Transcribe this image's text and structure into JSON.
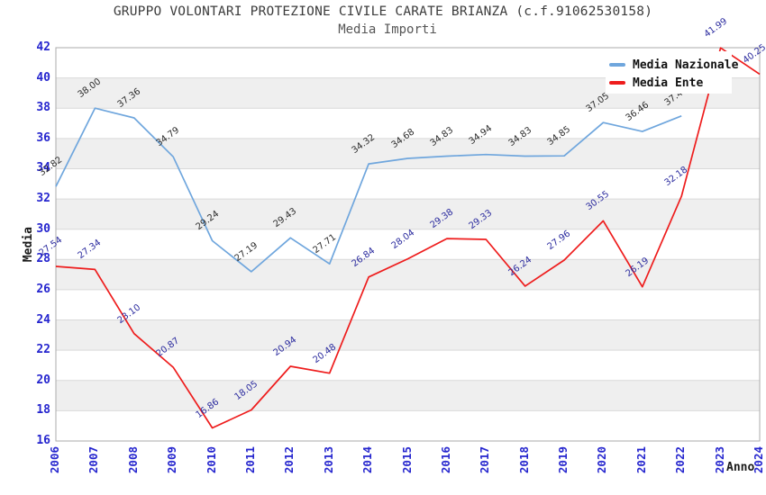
{
  "header": {
    "title": "GRUPPO VOLONTARI PROTEZIONE CIVILE CARATE BRIANZA (c.f.91062530158)",
    "subtitle": "Media Importi"
  },
  "colors": {
    "band_gray": "#efefef",
    "grid_line": "#d9d9d9",
    "plot_border": "#ababab",
    "tick_label": "#2525ce",
    "axis_title": "#1a1a1a"
  },
  "chart_data": {
    "type": "line",
    "title": "GRUPPO VOLONTARI PROTEZIONE CIVILE CARATE BRIANZA (c.f.91062530158)",
    "subtitle": "Media Importi",
    "xlabel": "Anno",
    "ylabel": "Media",
    "ylim": [
      16,
      42
    ],
    "ytick_step": 2,
    "ytick_labels": [
      "16",
      "18",
      "20",
      "22",
      "24",
      "26",
      "28",
      "30",
      "32",
      "34",
      "36",
      "38",
      "40",
      "42"
    ],
    "grid": "horizontal-bands-alternating",
    "legend_position": "top-right",
    "x_categories": [
      "2006",
      "2007",
      "2008",
      "2009",
      "2010",
      "2011",
      "2012",
      "2013",
      "2014",
      "2015",
      "2016",
      "2017",
      "2018",
      "2019",
      "2020",
      "2021",
      "2022",
      "2023",
      "2024"
    ],
    "series": [
      {
        "name": "Media Nazionale",
        "color": "#6fa6dd",
        "label_color": "#2b2b2b",
        "values": [
          32.82,
          38.0,
          37.36,
          34.79,
          29.24,
          27.19,
          29.43,
          27.71,
          34.32,
          34.68,
          34.83,
          34.94,
          34.83,
          34.85,
          37.05,
          36.46,
          37.49,
          null,
          null
        ]
      },
      {
        "name": "Media Ente",
        "color": "#ee1c1c",
        "label_color": "#2a2a9e",
        "values": [
          27.54,
          27.34,
          23.1,
          20.87,
          16.86,
          18.05,
          20.94,
          20.48,
          26.84,
          28.04,
          29.38,
          29.33,
          26.24,
          27.96,
          30.55,
          26.19,
          32.18,
          41.99,
          40.25
        ]
      }
    ]
  }
}
